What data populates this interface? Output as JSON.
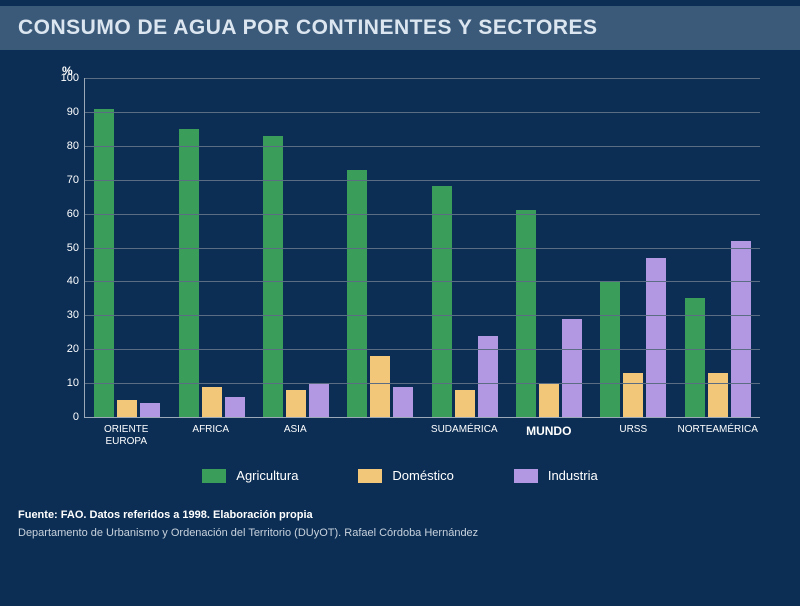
{
  "title": "CONSUMO DE AGUA POR CONTINENTES Y SECTORES",
  "y_axis_label": "%",
  "chart": {
    "type": "bar",
    "ylim": [
      0,
      100
    ],
    "ytick_step": 10,
    "grid_color": "#5a6d82",
    "axis_color": "#9aa8b8",
    "background": "#0c2e54",
    "categories": [
      "ORIENTE\nEUROPA",
      "AFRICA",
      "ASIA",
      "",
      "SUDAMÉRICA",
      "MUNDO",
      "URSS",
      "NORTEAMÉRICA"
    ],
    "category_bold": [
      false,
      false,
      false,
      false,
      false,
      true,
      false,
      false
    ],
    "series": [
      {
        "name": "Agricultura",
        "color": "#3a9d5a",
        "values": [
          91,
          85,
          83,
          73,
          68,
          61,
          40,
          35
        ]
      },
      {
        "name": "Doméstico",
        "color": "#f2c779",
        "values": [
          5,
          9,
          8,
          18,
          8,
          10,
          13,
          13
        ]
      },
      {
        "name": "Industria",
        "color": "#b297e2",
        "values": [
          4,
          6,
          10,
          9,
          24,
          29,
          47,
          52
        ]
      }
    ]
  },
  "legend": {
    "items": [
      {
        "label": "Agricultura",
        "color": "#3a9d5a"
      },
      {
        "label": "Doméstico",
        "color": "#f2c779"
      },
      {
        "label": "Industria",
        "color": "#b297e2"
      }
    ]
  },
  "footer": {
    "source": "Fuente: FAO. Datos referidos a 1998. Elaboración propia",
    "dept": "Departamento de Urbanismo y Ordenación del Territorio (DUyOT). Rafael Córdoba Hernández"
  }
}
